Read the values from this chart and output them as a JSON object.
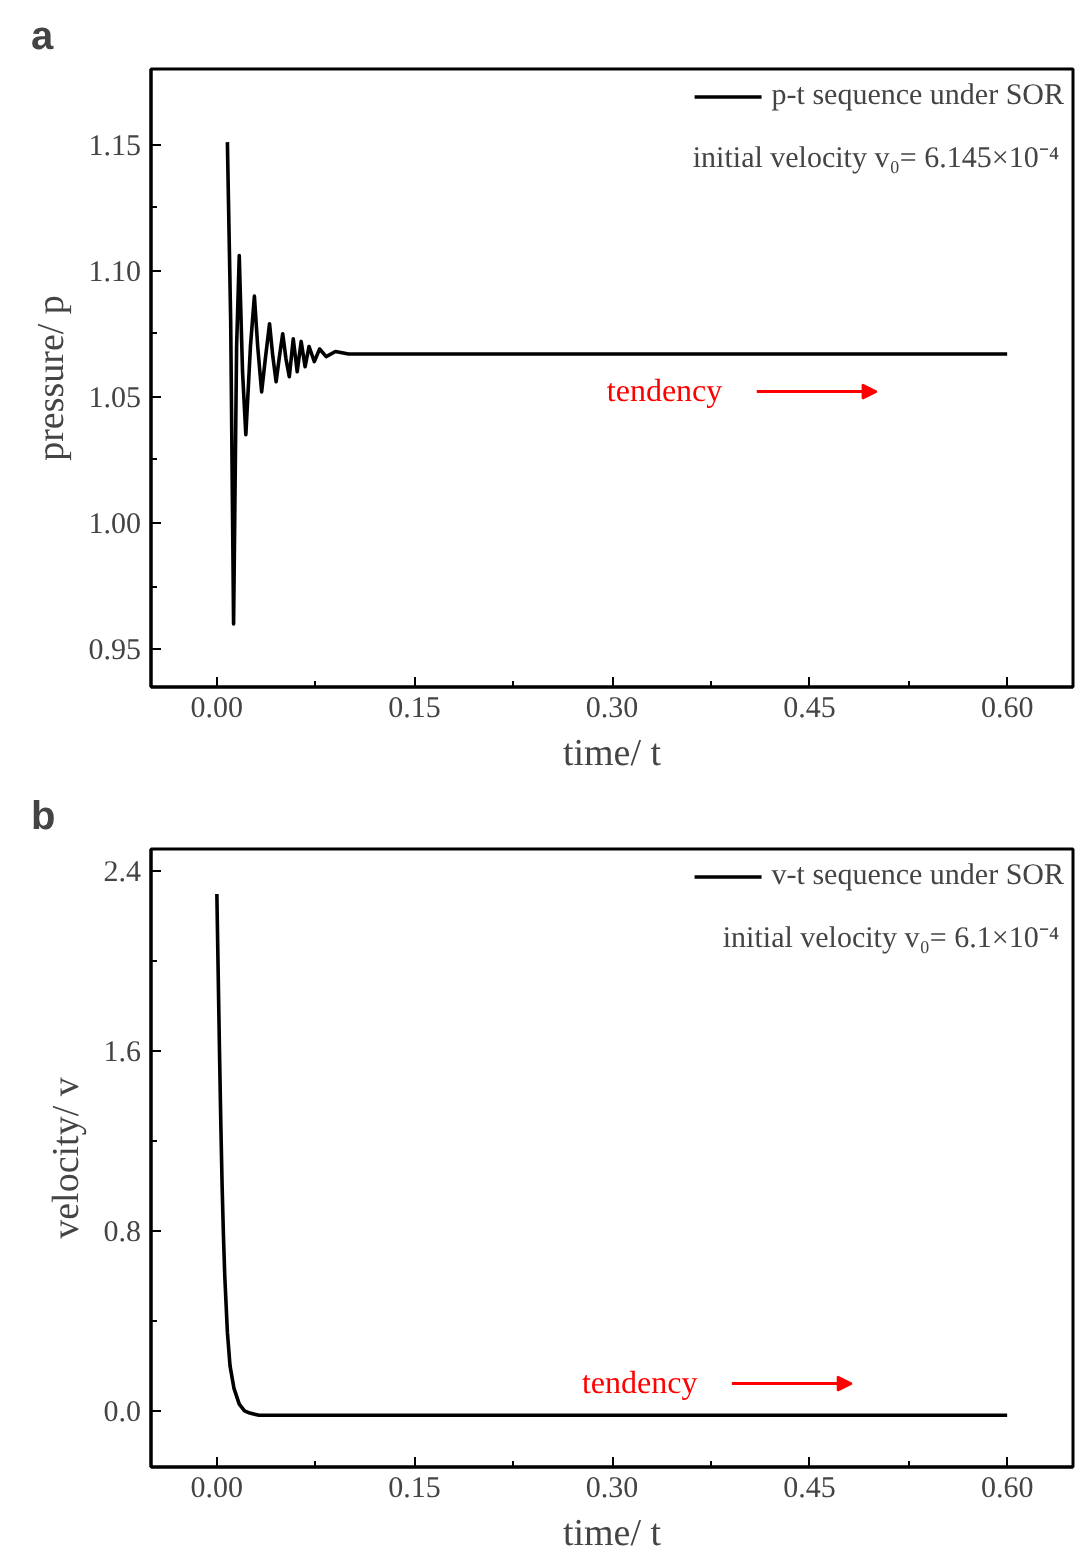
{
  "chart_data": [
    {
      "type": "line",
      "title": "a",
      "xlabel": "time/ t",
      "ylabel": "pressure/ p",
      "xlim": [
        -0.05,
        0.65
      ],
      "ylim": [
        0.935,
        1.18
      ],
      "xticks": [
        {
          "value": 0,
          "label": "0.00"
        },
        0.15,
        {
          "value": 0.3,
          "label": "0.30"
        },
        0.45,
        {
          "value": 0.6,
          "label": "0.60"
        }
      ],
      "yticks": [
        0.95,
        {
          "value": 1.0,
          "label": "1.00"
        },
        1.05,
        {
          "value": 1.1,
          "label": "1.10"
        },
        1.15
      ],
      "grid": false,
      "legend": "top right",
      "line_style": "solid",
      "annotations": [
        "initial velocity v₀= 6.145×10⁻⁴",
        "tendency"
      ],
      "series": [
        {
          "name": "p-t sequence under SOR",
          "color": "#000000",
          "x": [
            0.008,
            0.0105,
            0.0127,
            0.015,
            0.017,
            0.0195,
            0.022,
            0.0255,
            0.0285,
            0.031,
            0.034,
            0.037,
            0.04,
            0.0425,
            0.045,
            0.0475,
            0.05,
            0.0525,
            0.055,
            0.058,
            0.061,
            0.064,
            0.067,
            0.07,
            0.074,
            0.078,
            0.083,
            0.09,
            0.1,
            0.2,
            0.3,
            0.4,
            0.5,
            0.6
          ],
          "values": [
            1.151,
            1.08,
            0.96,
            1.07,
            1.106,
            1.06,
            1.035,
            1.07,
            1.09,
            1.07,
            1.052,
            1.066,
            1.079,
            1.066,
            1.056,
            1.066,
            1.075,
            1.065,
            1.058,
            1.073,
            1.06,
            1.072,
            1.062,
            1.07,
            1.064,
            1.069,
            1.066,
            1.068,
            1.067,
            1.067,
            1.067,
            1.067,
            1.067,
            1.067
          ]
        }
      ]
    },
    {
      "type": "line",
      "title": "b",
      "xlabel": "time/ t",
      "ylabel": "velocity/ v",
      "xlim": [
        -0.05,
        0.65
      ],
      "ylim": [
        -0.25,
        2.5
      ],
      "xticks": [
        {
          "value": 0,
          "label": "0.00"
        },
        0.15,
        {
          "value": 0.3,
          "label": "0.30"
        },
        0.45,
        {
          "value": 0.6,
          "label": "0.60"
        }
      ],
      "yticks": [
        {
          "value": 0,
          "label": "0.0"
        },
        0.8,
        1.6,
        2.4
      ],
      "grid": false,
      "legend": "top right",
      "line_style": "solid",
      "annotations": [
        "initial velocity v₀= 6.1×10⁻⁴",
        "tendency"
      ],
      "series": [
        {
          "name": "v-t sequence under SOR",
          "color": "#000000",
          "x": [
            0,
            0.001,
            0.002,
            0.003,
            0.004,
            0.005,
            0.006,
            0.008,
            0.01,
            0.013,
            0.017,
            0.021,
            0.025,
            0.032,
            0.04,
            0.1,
            0.3,
            0.6
          ],
          "values": [
            2.3,
            1.95,
            1.6,
            1.28,
            1.0,
            0.78,
            0.6,
            0.35,
            0.2,
            0.1,
            0.03,
            0.0,
            -0.01,
            -0.02,
            -0.02,
            -0.02,
            -0.02,
            -0.02
          ]
        }
      ]
    }
  ]
}
